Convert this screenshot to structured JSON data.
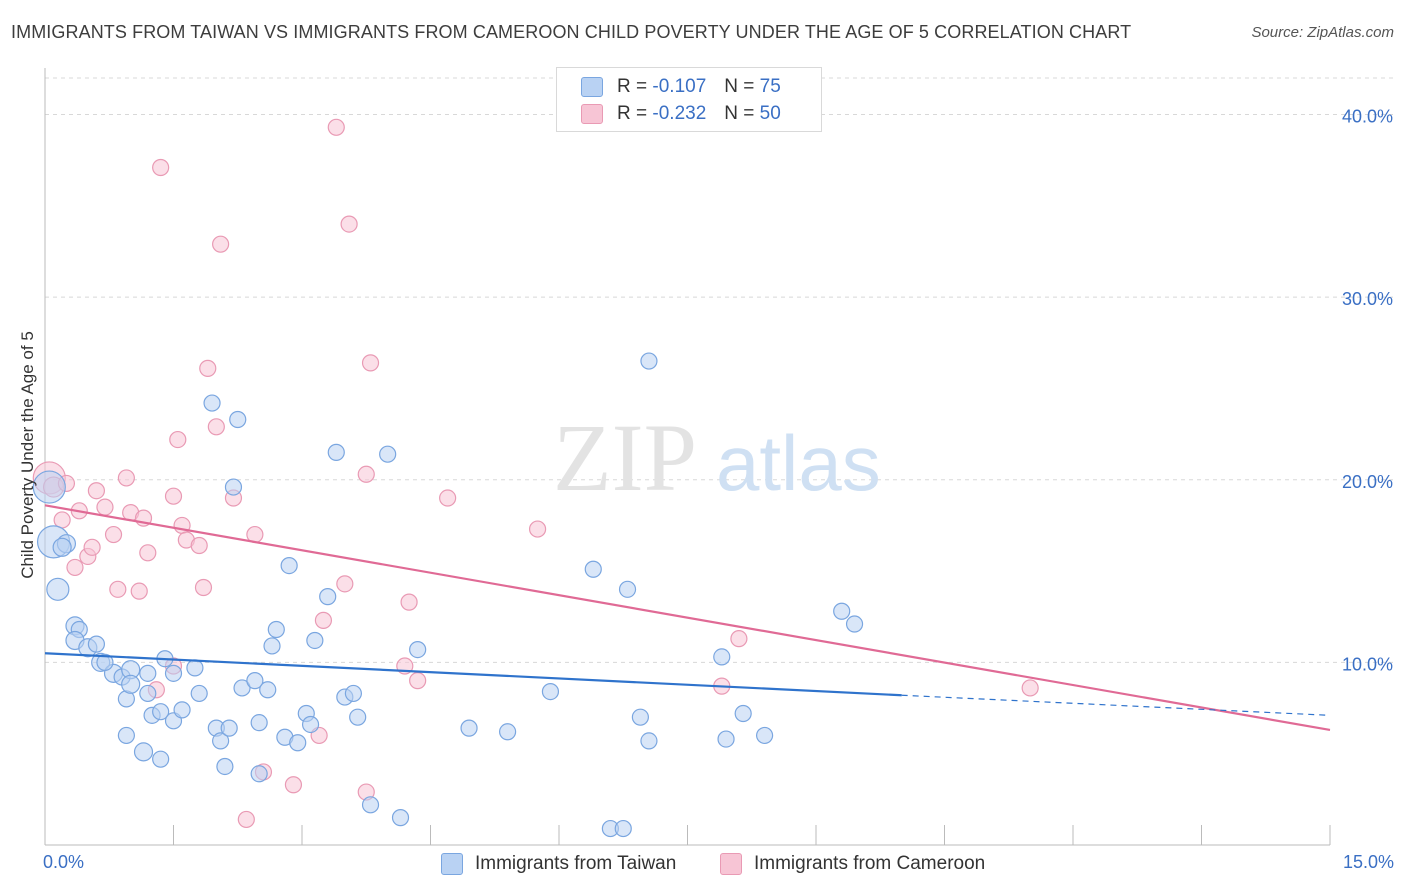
{
  "title": "IMMIGRANTS FROM TAIWAN VS IMMIGRANTS FROM CAMEROON CHILD POVERTY UNDER THE AGE OF 5 CORRELATION CHART",
  "source": "Source: ZipAtlas.com",
  "watermark": {
    "zip": "ZIP",
    "atlas": "atlas"
  },
  "legend": {
    "r_label": "R =",
    "n_label": "N =",
    "taiwan": {
      "r": "-0.107",
      "n": "75"
    },
    "cameroon": {
      "r": "-0.232",
      "n": "50"
    }
  },
  "colors": {
    "taiwan_fill": "#b9d2f3",
    "taiwan_stroke": "#7aa6e0",
    "taiwan_line": "#2f73cc",
    "cameroon_fill": "#f7c5d5",
    "cameroon_stroke": "#e99ab4",
    "cameroon_line": "#e06a95",
    "axis_text": "#3a6fc4",
    "grid": "#d8d8d8"
  },
  "chart_data": {
    "type": "scatter",
    "title": "IMMIGRANTS FROM TAIWAN VS IMMIGRANTS FROM CAMEROON CHILD POVERTY UNDER THE AGE OF 5 CORRELATION CHART",
    "xlabel": "",
    "ylabel": "Child Poverty Under the Age of 5",
    "xlim": [
      0,
      15
    ],
    "ylim": [
      0,
      42
    ],
    "x_tick_labels": [
      "0.0%",
      "15.0%"
    ],
    "y_ticks": [
      10,
      20,
      30,
      40
    ],
    "y_tick_labels": [
      "10.0%",
      "20.0%",
      "30.0%",
      "40.0%"
    ],
    "grid": true,
    "legend_position": "top-center",
    "series": [
      {
        "name": "Immigrants from Taiwan",
        "trend": {
          "x": [
            0,
            10.0
          ],
          "y": [
            10.5,
            8.2
          ],
          "dashed_to": [
            15,
            7.1
          ]
        },
        "points": [
          [
            0.05,
            19.6,
            16
          ],
          [
            0.1,
            16.6,
            16
          ],
          [
            0.15,
            14.0,
            11
          ],
          [
            0.25,
            16.5,
            9
          ],
          [
            0.2,
            16.3,
            9
          ],
          [
            0.35,
            12.0,
            9
          ],
          [
            0.4,
            11.8,
            8
          ],
          [
            0.35,
            11.2,
            9
          ],
          [
            0.5,
            10.8,
            9
          ],
          [
            0.6,
            11.0,
            8
          ],
          [
            0.65,
            10.0,
            9
          ],
          [
            0.8,
            9.4,
            9
          ],
          [
            0.9,
            9.2,
            8
          ],
          [
            1.0,
            9.6,
            9
          ],
          [
            0.95,
            8.0,
            8
          ],
          [
            1.0,
            8.8,
            9
          ],
          [
            1.2,
            9.4,
            8
          ],
          [
            1.4,
            10.2,
            8
          ],
          [
            1.5,
            9.4,
            8
          ],
          [
            1.2,
            8.3,
            8
          ],
          [
            1.25,
            7.1,
            8
          ],
          [
            1.35,
            7.3,
            8
          ],
          [
            1.5,
            6.8,
            8
          ],
          [
            1.6,
            7.4,
            8
          ],
          [
            0.95,
            6.0,
            8
          ],
          [
            1.15,
            5.1,
            9
          ],
          [
            1.75,
            9.7,
            8
          ],
          [
            1.8,
            8.3,
            8
          ],
          [
            2.0,
            6.4,
            8
          ],
          [
            2.05,
            5.7,
            8
          ],
          [
            2.15,
            6.4,
            8
          ],
          [
            2.3,
            8.6,
            8
          ],
          [
            2.45,
            9.0,
            8
          ],
          [
            2.5,
            6.7,
            8
          ],
          [
            2.6,
            8.5,
            8
          ],
          [
            2.65,
            10.9,
            8
          ],
          [
            2.7,
            11.8,
            8
          ],
          [
            2.8,
            5.9,
            8
          ],
          [
            2.95,
            5.6,
            8
          ],
          [
            3.05,
            7.2,
            8
          ],
          [
            3.1,
            6.6,
            8
          ],
          [
            3.15,
            11.2,
            8
          ],
          [
            3.3,
            13.6,
            8
          ],
          [
            3.5,
            8.1,
            8
          ],
          [
            3.6,
            8.3,
            8
          ],
          [
            3.65,
            7.0,
            8
          ],
          [
            1.35,
            4.7,
            8
          ],
          [
            2.1,
            4.3,
            8
          ],
          [
            2.5,
            3.9,
            8
          ],
          [
            3.8,
            2.2,
            8
          ],
          [
            4.15,
            1.5,
            8
          ],
          [
            4.35,
            10.7,
            8
          ],
          [
            4.95,
            6.4,
            8
          ],
          [
            5.4,
            6.2,
            8
          ],
          [
            5.9,
            8.4,
            8
          ],
          [
            6.4,
            15.1,
            8
          ],
          [
            6.6,
            0.9,
            8
          ],
          [
            6.75,
            0.9,
            8
          ],
          [
            6.8,
            14.0,
            8
          ],
          [
            6.95,
            7.0,
            8
          ],
          [
            7.05,
            5.7,
            8
          ],
          [
            7.05,
            26.5,
            8
          ],
          [
            7.9,
            10.3,
            8
          ],
          [
            7.95,
            5.8,
            8
          ],
          [
            8.15,
            7.2,
            8
          ],
          [
            8.4,
            6.0,
            8
          ],
          [
            9.3,
            12.8,
            8
          ],
          [
            9.45,
            12.1,
            8
          ],
          [
            1.95,
            24.2,
            8
          ],
          [
            2.25,
            23.3,
            8
          ],
          [
            2.2,
            19.6,
            8
          ],
          [
            3.4,
            21.5,
            8
          ],
          [
            4.0,
            21.4,
            8
          ],
          [
            2.85,
            15.3,
            8
          ],
          [
            0.7,
            10.0,
            8
          ]
        ]
      },
      {
        "name": "Immigrants from Cameroon",
        "trend": {
          "x": [
            0,
            15
          ],
          "y": [
            18.6,
            6.3
          ]
        },
        "points": [
          [
            0.05,
            20.1,
            16
          ],
          [
            0.1,
            19.6,
            10
          ],
          [
            0.25,
            19.8,
            8
          ],
          [
            0.2,
            17.8,
            8
          ],
          [
            0.35,
            15.2,
            8
          ],
          [
            0.4,
            18.3,
            8
          ],
          [
            0.5,
            15.8,
            8
          ],
          [
            0.55,
            16.3,
            8
          ],
          [
            0.6,
            19.4,
            8
          ],
          [
            0.7,
            18.5,
            8
          ],
          [
            0.8,
            17.0,
            8
          ],
          [
            0.85,
            14.0,
            8
          ],
          [
            0.95,
            20.1,
            8
          ],
          [
            1.0,
            18.2,
            8
          ],
          [
            1.1,
            13.9,
            8
          ],
          [
            1.15,
            17.9,
            8
          ],
          [
            1.2,
            16.0,
            8
          ],
          [
            1.3,
            8.5,
            8
          ],
          [
            1.5,
            9.8,
            8
          ],
          [
            1.5,
            19.1,
            8
          ],
          [
            1.6,
            17.5,
            8
          ],
          [
            1.65,
            16.7,
            8
          ],
          [
            1.8,
            16.4,
            8
          ],
          [
            1.85,
            14.1,
            8
          ],
          [
            1.55,
            22.2,
            8
          ],
          [
            1.9,
            26.1,
            8
          ],
          [
            2.0,
            22.9,
            8
          ],
          [
            2.2,
            19.0,
            8
          ],
          [
            2.45,
            17.0,
            8
          ],
          [
            1.35,
            37.1,
            8
          ],
          [
            2.05,
            32.9,
            8
          ],
          [
            3.4,
            39.3,
            8
          ],
          [
            3.55,
            34.0,
            8
          ],
          [
            3.8,
            26.4,
            8
          ],
          [
            3.75,
            20.3,
            8
          ],
          [
            3.5,
            14.3,
            8
          ],
          [
            3.25,
            12.3,
            8
          ],
          [
            3.2,
            6.0,
            8
          ],
          [
            2.55,
            4.0,
            8
          ],
          [
            2.35,
            1.4,
            8
          ],
          [
            2.9,
            3.3,
            8
          ],
          [
            3.75,
            2.9,
            8
          ],
          [
            4.25,
            13.3,
            8
          ],
          [
            4.35,
            9.0,
            8
          ],
          [
            4.2,
            9.8,
            8
          ],
          [
            4.7,
            19.0,
            8
          ],
          [
            5.75,
            17.3,
            8
          ],
          [
            8.1,
            11.3,
            8
          ],
          [
            7.9,
            8.7,
            8
          ],
          [
            11.5,
            8.6,
            8
          ]
        ]
      }
    ]
  },
  "bottom_legend": {
    "taiwan": "Immigrants from Taiwan",
    "cameroon": "Immigrants from Cameroon"
  }
}
